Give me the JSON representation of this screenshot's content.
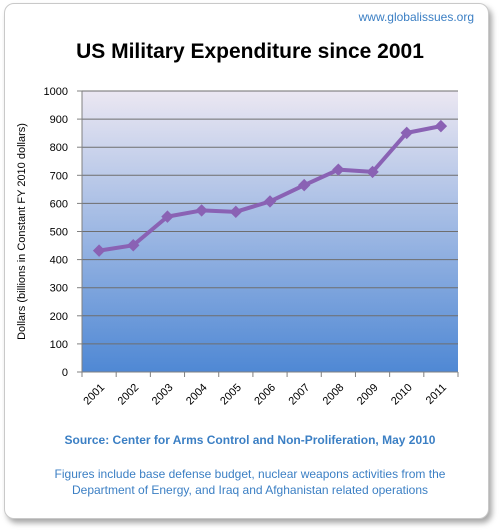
{
  "site_label": "www.globalissues.org",
  "source_text": "Source: Center for Arms Control and Non-Proliferation, May 2010",
  "note_text": "Figures include base defense budget, nuclear weapons activities from the Department of Energy, and Iraq and Afghanistan related operations",
  "colors": {
    "line": "#8a62b4",
    "plot_top": "#ebe7f2",
    "plot_bottom": "#4f88d4",
    "accent_text": "#3b7fc4"
  },
  "chart_data": {
    "type": "line",
    "title": "US Military Expenditure since 2001",
    "xlabel": "",
    "ylabel": "Dollars (billions in Constant FY 2010 dollars)",
    "categories": [
      "2001",
      "2002",
      "2003",
      "2004",
      "2005",
      "2006",
      "2007",
      "2008",
      "2009",
      "2010",
      "2011"
    ],
    "series": [
      {
        "values": [
          432,
          451,
          553,
          575,
          570,
          607,
          665,
          720,
          712,
          851,
          875
        ]
      }
    ],
    "ylim": [
      0,
      1000
    ],
    "yticks": [
      0,
      100,
      200,
      300,
      400,
      500,
      600,
      700,
      800,
      900,
      1000
    ],
    "grid": true,
    "legend": "none",
    "marker": "diamond"
  }
}
